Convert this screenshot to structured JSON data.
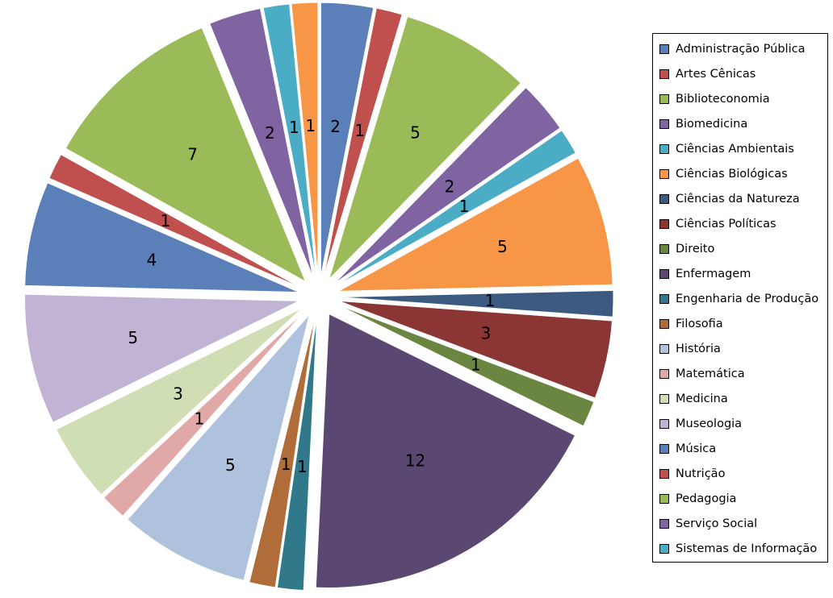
{
  "chart_data": {
    "type": "pie",
    "title": "",
    "legend_position": "right",
    "exploded": true,
    "labels": [
      "Administração Pública",
      "Artes Cênicas",
      "Biblioteconomia",
      "Biomedicina",
      "Ciências Ambientais",
      "Ciências Biológicas",
      "Ciências da Natureza",
      "Ciências Políticas",
      "Direito",
      "Enfermagem",
      "Engenharia de Produção",
      "Filosofia",
      "História",
      "Matemática",
      "Medicina",
      "Museologia",
      "Música",
      "Nutrição",
      "Pedagogia",
      "Serviço Social",
      "Sistemas de Informação",
      ""
    ],
    "values": [
      2,
      1,
      5,
      2,
      1,
      5,
      1,
      3,
      1,
      12,
      1,
      1,
      5,
      1,
      3,
      5,
      4,
      1,
      7,
      2,
      1,
      1
    ],
    "colors": [
      "#5b7fb8",
      "#c0504d",
      "#9bbb59",
      "#8064a2",
      "#4bacc6",
      "#f79646",
      "#3c5a80",
      "#8b3634",
      "#6b8641",
      "#5b4872",
      "#31798a",
      "#b06d3a",
      "#aec1dd",
      "#e0a8a7",
      "#d0deb5",
      "#c1b3d4"
    ]
  }
}
